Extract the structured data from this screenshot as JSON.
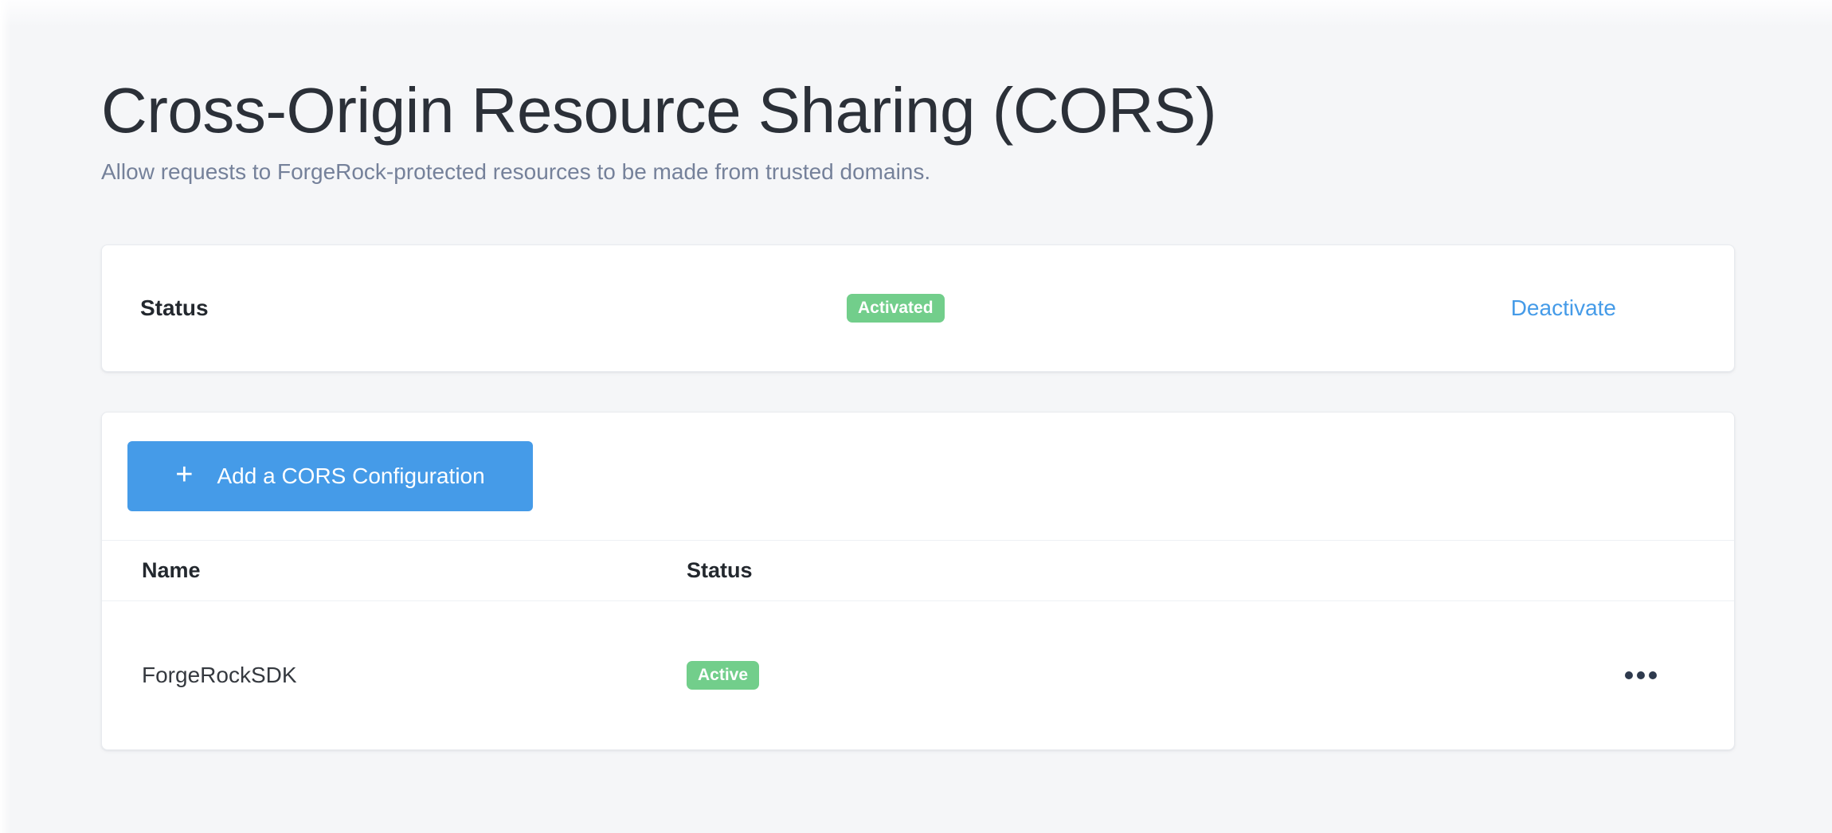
{
  "page": {
    "title": "Cross-Origin Resource Sharing (CORS)",
    "subtitle": "Allow requests to ForgeRock-protected resources to be made from trusted domains."
  },
  "status_card": {
    "label": "Status",
    "badge": "Activated",
    "action_label": "Deactivate"
  },
  "config_card": {
    "add_button": {
      "icon": "plus-icon",
      "icon_glyph": "+",
      "label": "Add a CORS Configuration"
    },
    "table": {
      "columns": [
        "Name",
        "Status"
      ],
      "rows": [
        {
          "name": "ForgeRockSDK",
          "status": "Active",
          "menu_icon": "ellipsis"
        }
      ]
    }
  },
  "colors": {
    "background": "#f5f6f8",
    "primary_blue": "#459be8",
    "success_green": "#72ce8b",
    "title_text": "#2b3038",
    "subtitle_text": "#75819a"
  }
}
